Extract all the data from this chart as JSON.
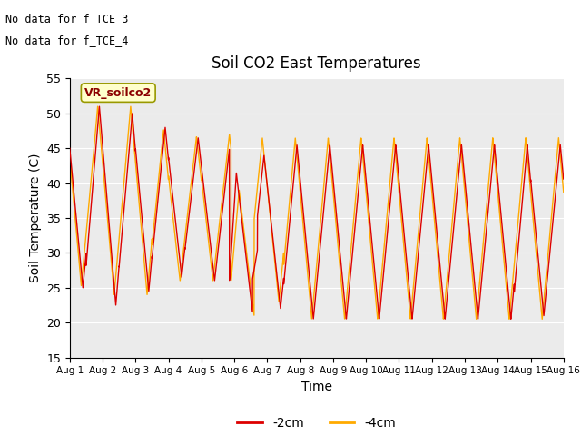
{
  "title": "Soil CO2 East Temperatures",
  "xlabel": "Time",
  "ylabel": "Soil Temperature (C)",
  "ylim": [
    15,
    55
  ],
  "xlim": [
    0,
    15
  ],
  "annotations_topleft": [
    "No data for f_TCE_3",
    "No data for f_TCE_4"
  ],
  "inner_legend_text": "VR_soilco2",
  "color_2cm": "#dd0000",
  "color_4cm": "#ffaa00",
  "xtick_labels": [
    "Aug 1",
    "Aug 2",
    "Aug 3",
    "Aug 4",
    "Aug 5",
    "Aug 6",
    "Aug 7",
    "Aug 8",
    "Aug 9",
    "Aug 10",
    "Aug 11",
    "Aug 12",
    "Aug 13",
    "Aug 14",
    "Aug 15",
    "Aug 16"
  ],
  "ytick_values": [
    15,
    20,
    25,
    30,
    35,
    40,
    45,
    50,
    55
  ],
  "bg_color": "#ebebeb",
  "fig_bg_color": "#ffffff",
  "legend_2cm": "-2cm",
  "legend_4cm": "-4cm",
  "grid_color": "#ffffff"
}
